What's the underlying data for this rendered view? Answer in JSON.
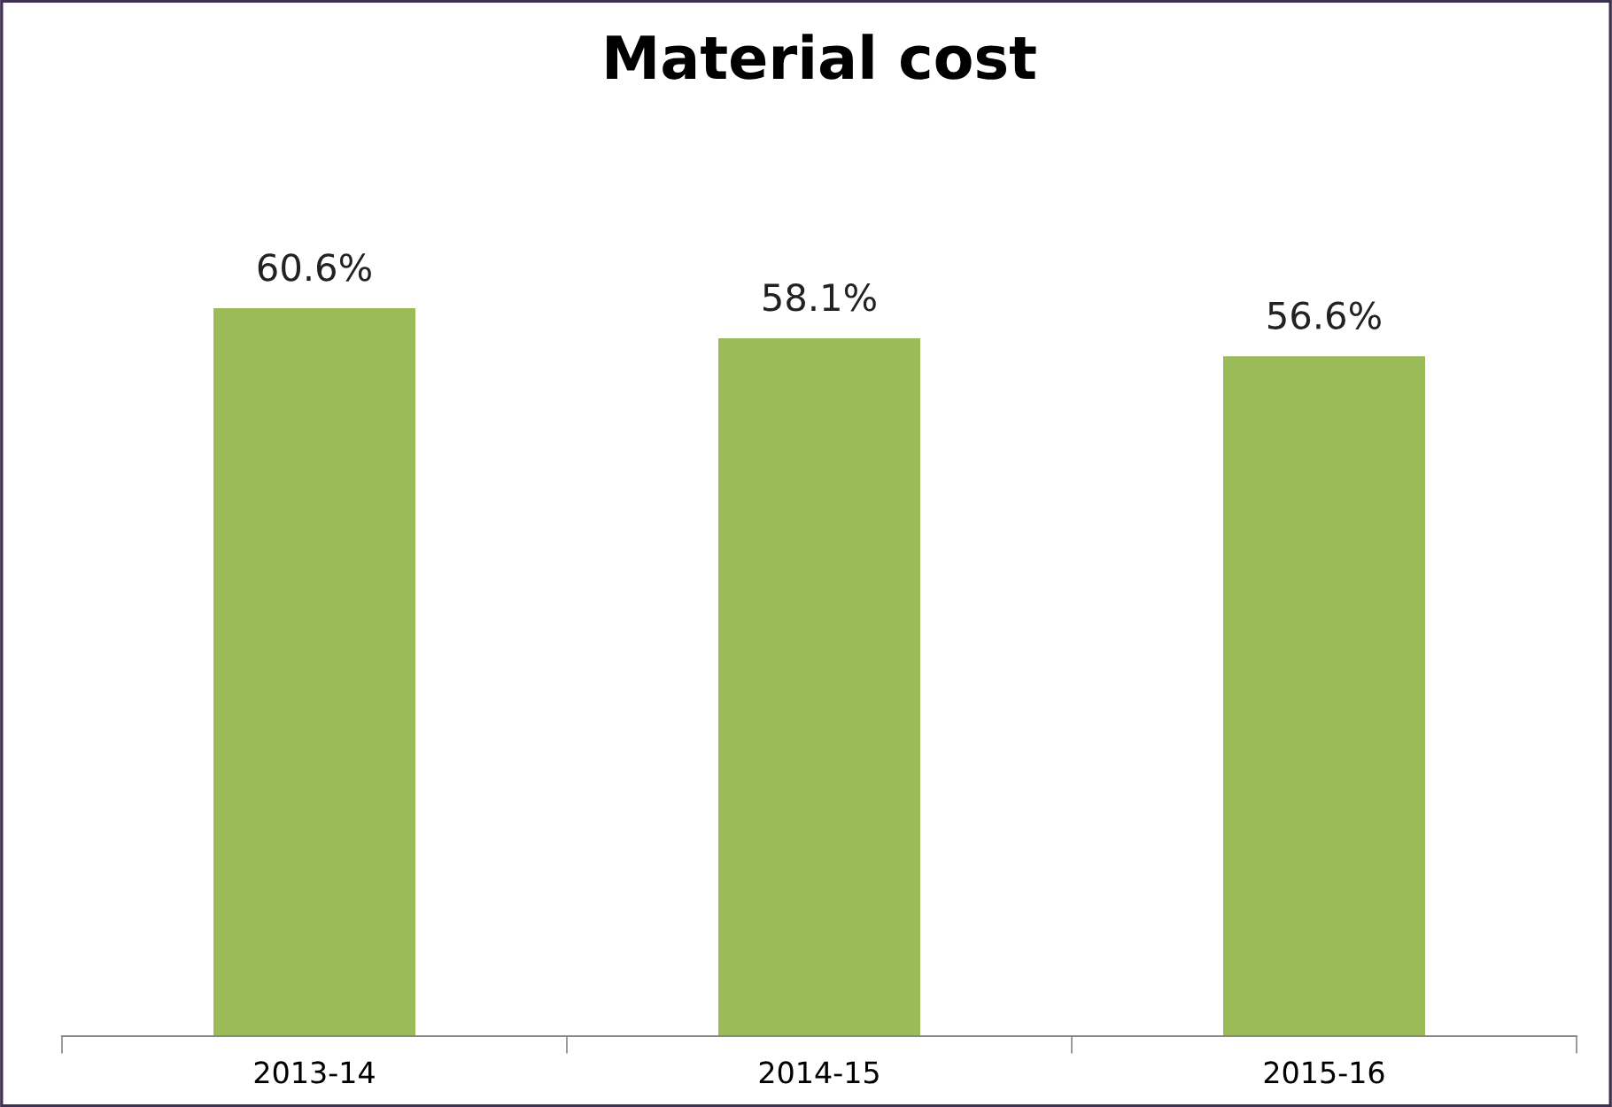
{
  "chart_data": {
    "type": "bar",
    "title": "Material cost",
    "categories": [
      "2013-14",
      "2014-15",
      "2015-16"
    ],
    "values": [
      60.6,
      58.1,
      56.6
    ],
    "color": "#9bbb59",
    "value_labels": [
      "60.6%",
      "58.1%",
      "56.6%"
    ],
    "grid": false,
    "legend": false
  }
}
